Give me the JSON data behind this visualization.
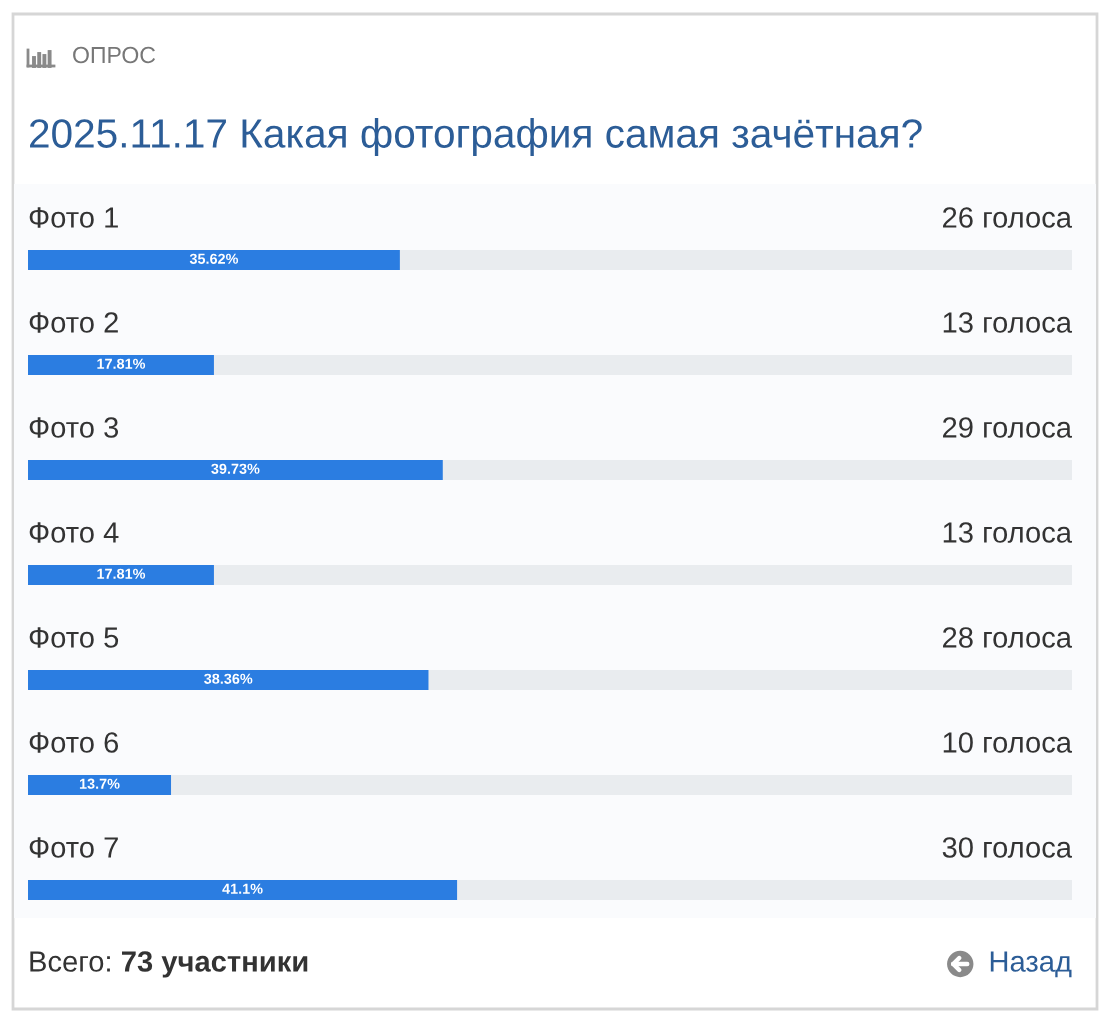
{
  "chart_data": {
    "type": "bar",
    "orientation": "horizontal",
    "title": "2025.11.17 Какая фотография самая зачётная?",
    "categories": [
      "Фото 1",
      "Фото 2",
      "Фото 3",
      "Фото 4",
      "Фото 5",
      "Фото 6",
      "Фото 7"
    ],
    "values": [
      35.62,
      17.81,
      39.73,
      17.81,
      38.36,
      13.7,
      41.1
    ],
    "value_labels": [
      "35.62%",
      "17.81%",
      "39.73%",
      "17.81%",
      "38.36%",
      "13.7%",
      "41.1%"
    ],
    "color": "#2b7de1",
    "xlim": [
      0,
      100
    ],
    "tick_labels": "y",
    "annotations": [
      "ОПРОС",
      "26 голоса",
      "13 голоса",
      "29 голоса",
      "13 голоса",
      "28 голоса",
      "10 голоса",
      "30 голоса",
      "Всего: 73 участники",
      "Назад"
    ]
  }
}
